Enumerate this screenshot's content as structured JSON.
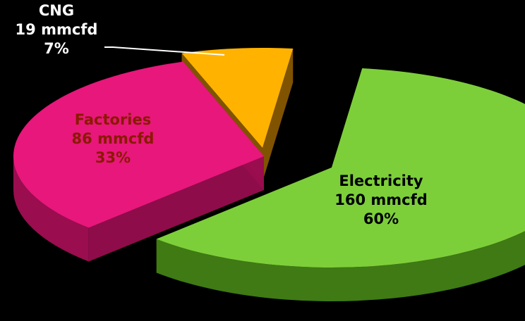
{
  "chart_data": {
    "type": "pie",
    "style": "3d-exploded",
    "unit": "mmcfd",
    "slices": [
      {
        "name": "Electricity",
        "value_text": "160 mmcfd",
        "pct_text": "60%",
        "value": 160,
        "percent": 60,
        "color": "#7dcf3a",
        "side_color": "#3f7a14",
        "label_color": "#000000"
      },
      {
        "name": "Factories",
        "value_text": "86 mmcfd",
        "pct_text": "33%",
        "value": 86,
        "percent": 33,
        "color": "#e8177b",
        "side_color": "#9a0d4f",
        "label_color": "#8a1a00"
      },
      {
        "name": "CNG",
        "value_text": "19 mmcfd",
        "pct_text": "7%",
        "value": 19,
        "percent": 7,
        "color": "#ffb300",
        "side_color": "#8a5a00",
        "label_color": "#ffffff"
      }
    ]
  }
}
